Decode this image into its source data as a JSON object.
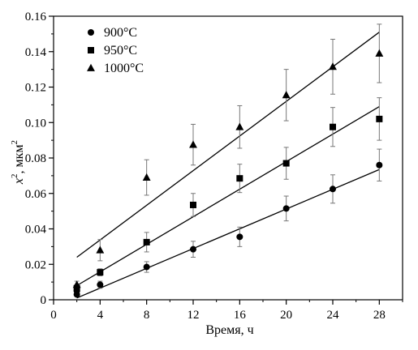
{
  "chart_data": {
    "type": "scatter",
    "xlabel": "Время, ч",
    "ylabel_main": "x",
    "ylabel_sup": "2",
    "ylabel_unit": ", мкм",
    "ylabel_unit_sup": "2",
    "xlim": [
      0,
      30
    ],
    "ylim": [
      0,
      0.16
    ],
    "xticks": [
      "0",
      "4",
      "8",
      "12",
      "16",
      "20",
      "24",
      "28"
    ],
    "xtick_values": [
      0,
      4,
      8,
      12,
      16,
      20,
      24,
      28
    ],
    "xtick_minor": [
      2,
      6,
      10,
      14,
      18,
      22,
      26,
      30
    ],
    "yticks": [
      "0",
      "0.02",
      "0.04",
      "0.06",
      "0.08",
      "0.10",
      "0.12",
      "0.14",
      "0.16"
    ],
    "ytick_values": [
      0,
      0.02,
      0.04,
      0.06,
      0.08,
      0.1,
      0.12,
      0.14,
      0.16
    ],
    "ytick_minor": [
      0.01,
      0.03,
      0.05,
      0.07,
      0.09,
      0.11,
      0.13,
      0.15
    ],
    "legend_position": "top-left",
    "series": [
      {
        "name": "900°C",
        "marker": "circle",
        "x": [
          2,
          2,
          4,
          8,
          12,
          16,
          20,
          24,
          28
        ],
        "y": [
          0.003,
          0.005,
          0.0085,
          0.0185,
          0.0285,
          0.0355,
          0.0515,
          0.0625,
          0.076
        ],
        "err": [
          0,
          0.002,
          0.002,
          0.003,
          0.0045,
          0.0055,
          0.007,
          0.008,
          0.009
        ],
        "fit": [
          [
            2,
            0.001
          ],
          [
            28,
            0.0735
          ]
        ]
      },
      {
        "name": "950°C",
        "marker": "square",
        "x": [
          2,
          4,
          8,
          12,
          16,
          20,
          24,
          28
        ],
        "y": [
          0.0065,
          0.0155,
          0.0325,
          0.0535,
          0.0685,
          0.077,
          0.0975,
          0.102
        ],
        "err": [
          0.002,
          0.002,
          0.0055,
          0.0065,
          0.008,
          0.009,
          0.011,
          0.012
        ],
        "fit": [
          [
            2,
            0.008
          ],
          [
            28,
            0.109
          ]
        ]
      },
      {
        "name": "1000°C",
        "marker": "triangle",
        "x": [
          2,
          4,
          8,
          12,
          16,
          20,
          24,
          28
        ],
        "y": [
          0.0085,
          0.028,
          0.069,
          0.0875,
          0.0975,
          0.1155,
          0.1315,
          0.139
        ],
        "err": [
          0.002,
          0.006,
          0.01,
          0.0115,
          0.012,
          0.0145,
          0.0155,
          0.0165
        ],
        "fit": [
          [
            2,
            0.024
          ],
          [
            28,
            0.151
          ]
        ]
      }
    ]
  }
}
